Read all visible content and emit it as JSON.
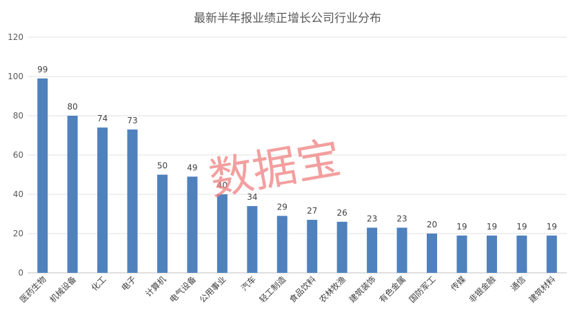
{
  "chart_data": {
    "type": "bar",
    "title": "最新半年报业绩正增长公司行业分布",
    "categories": [
      "医药生物",
      "机械设备",
      "化工",
      "电子",
      "计算机",
      "电气设备",
      "公用事业",
      "汽车",
      "轻工制造",
      "食品饮料",
      "农林牧渔",
      "建筑装饰",
      "有色金属",
      "国防军工",
      "传媒",
      "非银金融",
      "通信",
      "建筑材料"
    ],
    "values": [
      99,
      80,
      74,
      73,
      50,
      49,
      40,
      34,
      29,
      27,
      26,
      23,
      23,
      20,
      19,
      19,
      19,
      19
    ],
    "yticks": [
      "0",
      "20",
      "40",
      "60",
      "80",
      "100",
      "120"
    ],
    "ylim": [
      0,
      120
    ],
    "grid": true,
    "legend": "none",
    "bar_color": "#4f81bd"
  },
  "watermark": "数据宝"
}
